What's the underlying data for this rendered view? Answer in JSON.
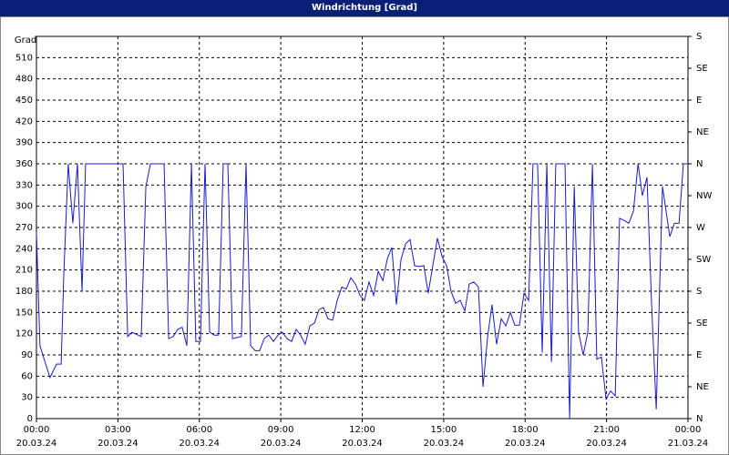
{
  "chart_data": {
    "type": "line",
    "title": "Windrichtung [Grad]",
    "y_label": "Grad",
    "color": "#1a1ad0",
    "grid": true,
    "x": [
      0,
      0.13,
      0.34,
      0.5,
      0.74,
      0.91,
      1.01,
      1.17,
      1.34,
      1.51,
      1.68,
      1.81,
      3.19,
      3.36,
      3.52,
      3.86,
      4.03,
      4.2,
      4.7,
      4.87,
      5.04,
      5.2,
      5.37,
      5.54,
      5.71,
      5.87,
      6.04,
      6.21,
      6.38,
      6.55,
      6.71,
      6.88,
      7.05,
      7.22,
      7.55,
      7.72,
      7.89,
      8.06,
      8.22,
      8.39,
      8.56,
      8.73,
      8.9,
      9.06,
      9.23,
      9.4,
      9.57,
      9.73,
      9.9,
      10.07,
      10.24,
      10.41,
      10.57,
      10.74,
      10.91,
      11.08,
      11.25,
      11.41,
      11.58,
      11.75,
      11.92,
      12.08,
      12.25,
      12.42,
      12.59,
      12.76,
      12.92,
      13.09,
      13.26,
      13.43,
      13.6,
      13.76,
      13.93,
      14.1,
      14.27,
      14.43,
      14.6,
      14.77,
      14.94,
      15.11,
      15.27,
      15.44,
      15.61,
      15.78,
      15.94,
      16.11,
      16.28,
      16.45,
      16.62,
      16.78,
      16.95,
      17.12,
      17.29,
      17.46,
      17.62,
      17.79,
      17.96,
      18.13,
      18.29,
      18.46,
      18.63,
      18.8,
      18.97,
      19.13,
      19.47,
      19.64,
      19.81,
      19.97,
      20.14,
      20.31,
      20.48,
      20.64,
      20.81,
      20.98,
      21.15,
      21.32,
      21.48,
      21.65,
      21.82,
      21.99,
      22.16,
      22.32,
      22.49,
      22.66,
      22.83,
      23.06,
      23.33,
      23.5,
      23.67,
      23.83,
      24
    ],
    "values": [
      263,
      103,
      77,
      58,
      77,
      77,
      206,
      360,
      276,
      360,
      180,
      360,
      360,
      116,
      122,
      116,
      328,
      360,
      360,
      113,
      116,
      126,
      129,
      103,
      360,
      109,
      109,
      360,
      122,
      118,
      118,
      360,
      360,
      113,
      116,
      360,
      103,
      96,
      96,
      113,
      118,
      109,
      118,
      122,
      113,
      109,
      126,
      118,
      105,
      131,
      135,
      154,
      157,
      141,
      139,
      167,
      186,
      183,
      199,
      190,
      174,
      167,
      193,
      174,
      208,
      195,
      225,
      242,
      161,
      225,
      247,
      253,
      216,
      215,
      216,
      177,
      216,
      255,
      229,
      216,
      180,
      163,
      167,
      152,
      190,
      193,
      186,
      45,
      116,
      161,
      105,
      141,
      131,
      150,
      132,
      132,
      177,
      167,
      360,
      360,
      93,
      360,
      80,
      360,
      360,
      0,
      328,
      122,
      90,
      122,
      360,
      84,
      87,
      28,
      39,
      32,
      283,
      280,
      276,
      293,
      360,
      315,
      341,
      161,
      13,
      328,
      257,
      276,
      276,
      360,
      360
    ],
    "xlim": [
      0,
      24
    ],
    "xticks": [
      {
        "value": 0,
        "label": "00:00\n20.03.24"
      },
      {
        "value": 3,
        "label": "03:00\n20.03.24"
      },
      {
        "value": 6,
        "label": "06:00\n20.03.24"
      },
      {
        "value": 9,
        "label": "09:00\n20.03.24"
      },
      {
        "value": 12,
        "label": "12:00\n20.03.24"
      },
      {
        "value": 15,
        "label": "15:00\n20.03.24"
      },
      {
        "value": 18,
        "label": "18:00\n20.03.24"
      },
      {
        "value": 21,
        "label": "21:00\n20.03.24"
      },
      {
        "value": 24,
        "label": "00:00\n21.03.24"
      }
    ],
    "ylim": [
      0,
      540
    ],
    "yticks": [
      0,
      30,
      60,
      90,
      120,
      150,
      180,
      210,
      240,
      270,
      300,
      330,
      360,
      390,
      420,
      450,
      480,
      510
    ],
    "y2lim": [
      0,
      540
    ],
    "y2ticks": [
      {
        "value": 0,
        "label": "N"
      },
      {
        "value": 45,
        "label": "NE"
      },
      {
        "value": 90,
        "label": "E"
      },
      {
        "value": 135,
        "label": "SE"
      },
      {
        "value": 180,
        "label": "S"
      },
      {
        "value": 225,
        "label": "SW"
      },
      {
        "value": 270,
        "label": "W"
      },
      {
        "value": 315,
        "label": "NW"
      },
      {
        "value": 360,
        "label": "N"
      },
      {
        "value": 405,
        "label": "NE"
      },
      {
        "value": 450,
        "label": "E"
      },
      {
        "value": 495,
        "label": "SE"
      },
      {
        "value": 540,
        "label": "S"
      }
    ]
  }
}
